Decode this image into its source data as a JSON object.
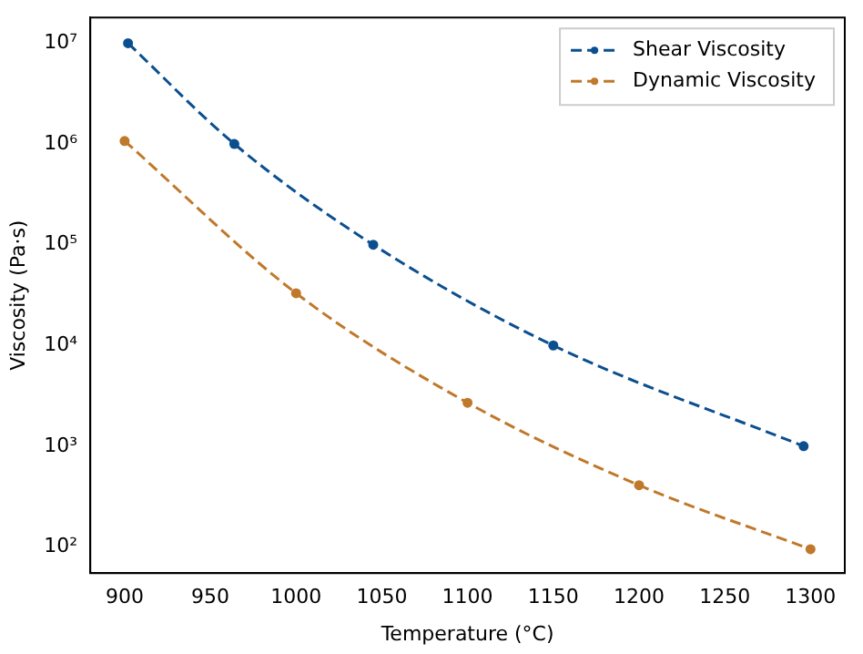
{
  "chart_data": {
    "type": "line",
    "xlabel": "Temperature (°C)",
    "ylabel": "Viscosity (Pa·s)",
    "log": "y",
    "grid": false,
    "legend": "top right",
    "marker": "circle",
    "line_style": "dashed",
    "xlim": [
      880,
      1320
    ],
    "xticks": [
      900,
      950,
      1000,
      1050,
      1100,
      1150,
      1200,
      1250,
      1300
    ],
    "ylim": [
      55,
      18000000
    ],
    "yticks": [
      {
        "value": 100,
        "label": "10²"
      },
      {
        "value": 1000,
        "label": "10³"
      },
      {
        "value": 10000,
        "label": "10⁴"
      },
      {
        "value": 100000,
        "label": "10⁵"
      },
      {
        "value": 1000000,
        "label": "10⁶"
      },
      {
        "value": 10000000,
        "label": "10⁷"
      }
    ],
    "series": [
      {
        "name": "Shear Viscosity",
        "color": "#0b4f8f",
        "x": [
          902,
          964,
          1045,
          1150,
          1296
        ],
        "values": [
          10000000,
          1000000,
          100000,
          10000,
          1000
        ]
      },
      {
        "name": "Dynamic Viscosity",
        "color": "#c0782a",
        "x": [
          900,
          1000,
          1100,
          1200,
          1300
        ],
        "values": [
          1070000,
          33000,
          2700,
          410,
          95
        ]
      }
    ]
  }
}
